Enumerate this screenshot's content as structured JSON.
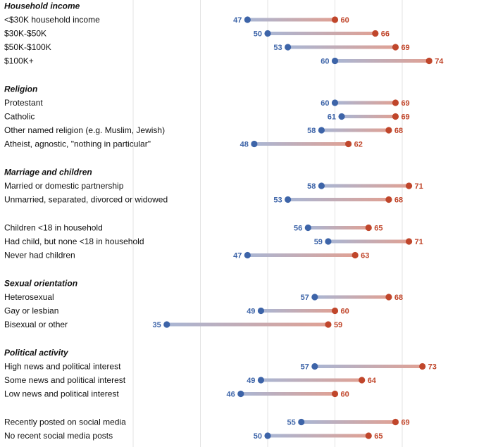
{
  "chart_data": {
    "type": "dumbbell",
    "xlim": [
      20,
      80
    ],
    "gridlines": [
      30,
      40,
      50,
      60,
      70
    ],
    "colors": {
      "start": "#3d64a8",
      "end": "#c0462b",
      "bar_start": "#a9b6d4",
      "bar_end": "#e0a194"
    },
    "sections": [
      {
        "title": "Household income",
        "rows": [
          {
            "label": "<$30K household income",
            "start": 47,
            "end": 60
          },
          {
            "label": "$30K-$50K",
            "start": 50,
            "end": 66
          },
          {
            "label": "$50K-$100K",
            "start": 53,
            "end": 69
          },
          {
            "label": "$100K+",
            "start": 60,
            "end": 74
          }
        ]
      },
      {
        "title": "Religion",
        "rows": [
          {
            "label": "Protestant",
            "start": 60,
            "end": 69
          },
          {
            "label": "Catholic",
            "start": 61,
            "end": 69
          },
          {
            "label": "Other named religion (e.g. Muslim, Jewish)",
            "start": 58,
            "end": 68
          },
          {
            "label": "Atheist, agnostic, \"nothing in particular\"",
            "start": 48,
            "end": 62
          }
        ]
      },
      {
        "title": "Marriage and children",
        "rows": [
          {
            "label": "Married or domestic partnership",
            "start": 58,
            "end": 71
          },
          {
            "label": "Unmarried, separated, divorced or widowed",
            "start": 53,
            "end": 68
          }
        ]
      },
      {
        "title": "",
        "rows": [
          {
            "label": "Children <18 in household",
            "start": 56,
            "end": 65
          },
          {
            "label": "Had child, but none <18 in household",
            "start": 59,
            "end": 71
          },
          {
            "label": "Never had children",
            "start": 47,
            "end": 63
          }
        ]
      },
      {
        "title": "Sexual orientation",
        "rows": [
          {
            "label": "Heterosexual",
            "start": 57,
            "end": 68
          },
          {
            "label": "Gay or lesbian",
            "start": 49,
            "end": 60
          },
          {
            "label": "Bisexual or other",
            "start": 35,
            "end": 59
          }
        ]
      },
      {
        "title": "Political activity",
        "rows": [
          {
            "label": "High news and political interest",
            "start": 57,
            "end": 73
          },
          {
            "label": "Some news and political interest",
            "start": 49,
            "end": 64
          },
          {
            "label": "Low news and political interest",
            "start": 46,
            "end": 60
          }
        ]
      },
      {
        "title": "",
        "rows": [
          {
            "label": "Recently posted on social media",
            "start": 55,
            "end": 69
          },
          {
            "label": "No recent social media posts",
            "start": 50,
            "end": 65
          }
        ]
      }
    ]
  }
}
